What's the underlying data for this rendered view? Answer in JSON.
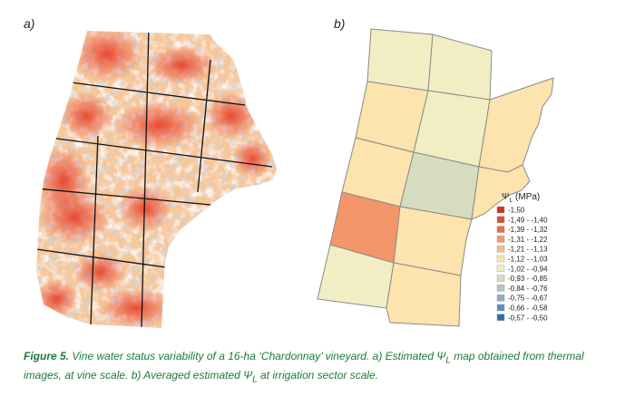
{
  "panels": {
    "a_label": "a)",
    "b_label": "b)"
  },
  "legend": {
    "title": "Ψ",
    "title_sub": "L",
    "title_unit": " (MPa)",
    "classes": [
      {
        "label": "-1,50",
        "color": "#d7301f"
      },
      {
        "label": "-1,49 - -1,40",
        "color": "#e34a33"
      },
      {
        "label": "-1,39 - -1,32",
        "color": "#ec6d4a"
      },
      {
        "label": "-1,31 - -1,22",
        "color": "#f4956a"
      },
      {
        "label": "-1,21 - -1,13",
        "color": "#f9bb8e"
      },
      {
        "label": "-1,12 - -1,03",
        "color": "#fde3ad"
      },
      {
        "label": "-1,02 - -0,94",
        "color": "#f1eec4"
      },
      {
        "label": "-0,93 - -0,85",
        "color": "#d6dcc0"
      },
      {
        "label": "-0,84 - -0,76",
        "color": "#b4c4c2"
      },
      {
        "label": "-0,75 - -0,67",
        "color": "#8fadc9"
      },
      {
        "label": "-0,66 - -0,58",
        "color": "#5f8fbf"
      },
      {
        "label": "-0,57 - -0,50",
        "color": "#2c6fad"
      }
    ]
  },
  "sectors": [
    {
      "id": "r1c1",
      "class": 6
    },
    {
      "id": "r1c2",
      "class": 6
    },
    {
      "id": "r2c1",
      "class": 5
    },
    {
      "id": "r2c2",
      "class": 6
    },
    {
      "id": "r2c3",
      "class": 5
    },
    {
      "id": "r3c1",
      "class": 5
    },
    {
      "id": "r3c2",
      "class": 7
    },
    {
      "id": "r3c3",
      "class": 5
    },
    {
      "id": "r4c1",
      "class": 3
    },
    {
      "id": "r4c2",
      "class": 5
    },
    {
      "id": "r5c1",
      "class": 6
    },
    {
      "id": "r5c2",
      "class": 5
    }
  ],
  "caption": {
    "figure": "Figure 5.",
    "text": " Vine water status variability of a 16-ha ‘Chardonnay’ vineyard. a) Estimated Ψ",
    "sub1": "L",
    "text2": " map obtained from thermal images, at vine scale. b) Averaged estimated Ψ",
    "sub2": "L",
    "text3": " at irrigation sector scale."
  }
}
